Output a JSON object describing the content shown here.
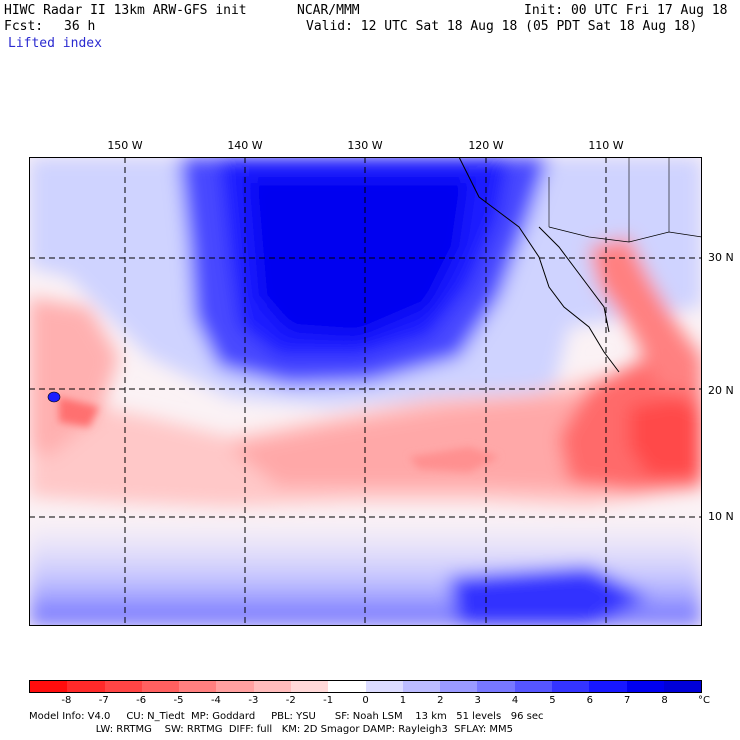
{
  "header": {
    "model_line": "HIWC Radar II 13km ARW-GFS init",
    "org": "NCAR/MMM",
    "init": "Init: 00 UTC Fri 17 Aug 18",
    "fcst_label": "Fcst:",
    "fcst_value": "36 h",
    "valid": "Valid: 12 UTC Sat 18 Aug 18 (05 PDT Sat 18 Aug 18)",
    "field": "Lifted index"
  },
  "map": {
    "lon_labels": [
      "150 W",
      "140 W",
      "130 W",
      "120 W",
      "110 W"
    ],
    "lat_labels": [
      "30 N",
      "20 N",
      "10 N"
    ]
  },
  "colorbar": {
    "unit": "°C",
    "ticks": [
      "-8",
      "-7",
      "-6",
      "-5",
      "-4",
      "-3",
      "-2",
      "-1",
      "0",
      "1",
      "2",
      "3",
      "4",
      "5",
      "6",
      "7",
      "8"
    ],
    "colors": [
      "#ff0d0d",
      "#ff2a2a",
      "#ff4545",
      "#ff6060",
      "#ff8080",
      "#ffa0a0",
      "#ffbcbc",
      "#ffd8d8",
      "#ffffff",
      "#dcdcff",
      "#bcbcff",
      "#9a9aff",
      "#7878ff",
      "#5656ff",
      "#3434ff",
      "#1717ff",
      "#0000f0",
      "#0000d8"
    ]
  },
  "footer": {
    "line1": "Model Info: V4.0     CU: N_Tiedt  MP: Goddard     PBL: YSU      SF: Noah LSM    13 km   51 levels   96 sec",
    "line2": "                     LW: RRTMG    SW: RRTMG  DIFF: full   KM: 2D Smagor DAMP: Rayleigh3  SFLAY: MM5"
  }
}
